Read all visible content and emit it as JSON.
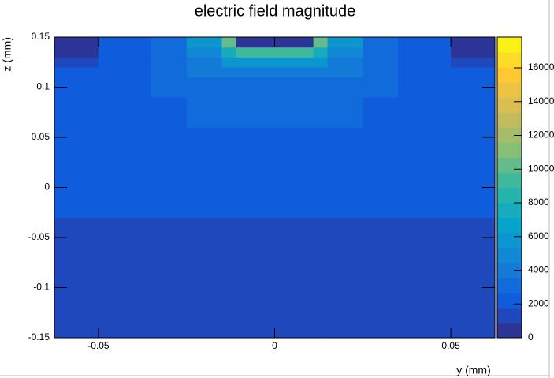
{
  "chart_data": {
    "type": "heatmap",
    "title": "electric field magnitude",
    "x_label": "y (mm)",
    "y_label": "z (mm)",
    "xlim": [
      -0.0625,
      0.0625
    ],
    "xticks": [
      -0.05,
      0,
      0.05
    ],
    "ylim": [
      -0.15,
      0.15
    ],
    "yticks": [
      -0.15,
      -0.1,
      -0.05,
      0,
      0.05,
      0.1,
      0.15
    ],
    "zlim": [
      0,
      17825
    ],
    "zticks": [
      0,
      2000,
      4000,
      6000,
      8000,
      10000,
      12000,
      14000,
      16000
    ],
    "colorscale": [
      "#352a87",
      "#0f5cdd",
      "#1481d6",
      "#06a4ca",
      "#2eb7a4",
      "#87bf77",
      "#d1bb59",
      "#fec832",
      "#f9fb0e"
    ],
    "xbins": [
      -0.0625,
      -0.05,
      -0.035,
      -0.025,
      -0.015,
      -0.011,
      0.011,
      0.015,
      0.025,
      0.035,
      0.05,
      0.0625
    ],
    "ybins": [
      -0.15,
      -0.03,
      0.0,
      0.06,
      0.09,
      0.11,
      0.12,
      0.13,
      0.14,
      0.15
    ],
    "values": [
      [
        1500,
        1500,
        1500,
        1500,
        1500,
        1500,
        1500,
        1500,
        1500,
        1500,
        1500
      ],
      [
        2500,
        2500,
        2500,
        2500,
        2500,
        2500,
        2500,
        2500,
        2500,
        2500,
        2500
      ],
      [
        2500,
        2500,
        2500,
        2500,
        2500,
        2500,
        2500,
        2500,
        2500,
        2500,
        2500
      ],
      [
        2500,
        2500,
        2500,
        2900,
        2900,
        2900,
        2900,
        2900,
        2500,
        2500,
        2500
      ],
      [
        2500,
        2500,
        3300,
        3300,
        3300,
        3300,
        3300,
        3300,
        3300,
        2500,
        2500
      ],
      [
        2500,
        2500,
        3300,
        4200,
        4200,
        4200,
        4200,
        4200,
        3300,
        2500,
        2500
      ],
      [
        1500,
        2500,
        3300,
        4200,
        5500,
        6000,
        5500,
        4200,
        3300,
        2500,
        1500
      ],
      [
        800,
        2500,
        3300,
        5000,
        7500,
        9000,
        7500,
        5000,
        3300,
        2500,
        800
      ],
      [
        500,
        1800,
        3300,
        5500,
        10000,
        300,
        10000,
        5500,
        3300,
        1800,
        500
      ]
    ]
  }
}
